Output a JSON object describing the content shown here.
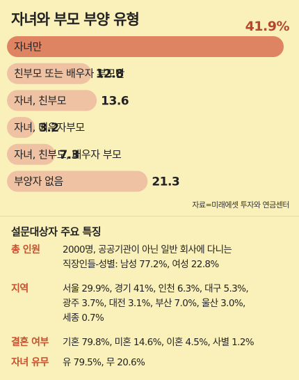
{
  "title": "자녀와 부모 부양 유형",
  "chart_data": {
    "type": "bar",
    "orientation": "horizontal",
    "categories": [
      "자녀만",
      "친부모 또는 배우자 부모만",
      "자녀, 친부모",
      "자녀, 배우자부모",
      "자녀, 친부모, 배우자 부모",
      "부양자 없음"
    ],
    "values": [
      41.9,
      12.8,
      13.6,
      3.2,
      7.3,
      21.3
    ],
    "value_labels": [
      "41.9%",
      "12.8",
      "13.6",
      "3.2",
      "7.3",
      "21.3"
    ],
    "unit": "%",
    "colors": {
      "highlight": "#de8462",
      "default": "#eec2a3"
    }
  },
  "source": "자료=미래에셋 투자와 연금센터",
  "survey": {
    "title": "설문대상자 주요 특징",
    "rows": [
      {
        "key": "총 인원",
        "lines": [
          "2000명, 공공기관이 아닌 일반 회사에 다니는",
          "직장인들-성별: 남성 77.2%, 여성 22.8%"
        ]
      },
      {
        "key": "지역",
        "lines": [
          "서울 29.9%, 경기 41%, 인천 6.3%, 대구 5.3%,",
          "광주 3.7%, 대전 3.1%, 부산 7.0%, 울산 3.0%,",
          "세종 0.7%"
        ]
      },
      {
        "key": "결혼 여부",
        "lines": [
          "기혼 79.8%, 미혼 14.6%, 이혼 4.5%, 사별 1.2%"
        ]
      },
      {
        "key": "자녀 유무",
        "lines": [
          "유 79.5%, 무 20.6%"
        ]
      }
    ]
  }
}
